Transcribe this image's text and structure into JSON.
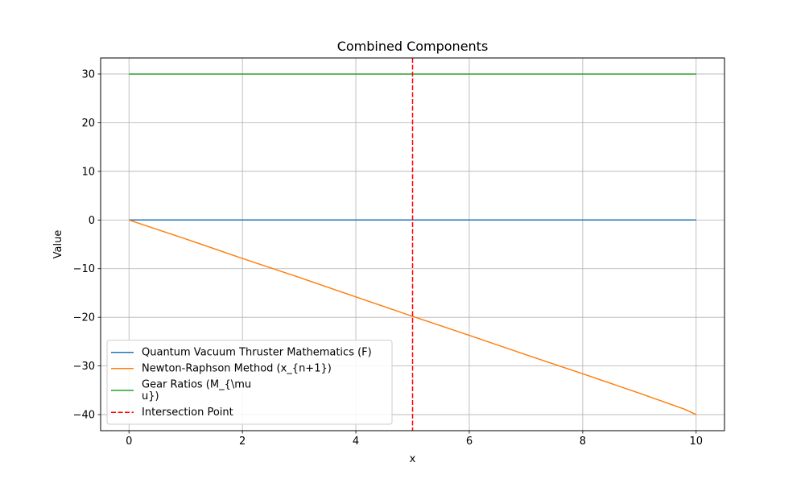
{
  "chart_data": {
    "type": "line",
    "title": "Combined Components",
    "xlabel": "x",
    "ylabel": "Value",
    "xlim": [
      -0.5,
      10.5
    ],
    "ylim": [
      -43.3,
      33.3
    ],
    "xticks": [
      0,
      2,
      4,
      6,
      8,
      10
    ],
    "yticks": [
      -40,
      -30,
      -20,
      -10,
      0,
      10,
      20,
      30
    ],
    "xtick_labels": [
      "0",
      "2",
      "4",
      "6",
      "8",
      "10"
    ],
    "ytick_labels": [
      "−40",
      "−30",
      "−20",
      "−10",
      "0",
      "10",
      "20",
      "30"
    ],
    "grid": true,
    "legend_position": "lower-left",
    "series": [
      {
        "name": "Quantum Vacuum Thruster Mathematics (F)",
        "name_lines": [
          "Quantum Vacuum Thruster Mathematics (F)"
        ],
        "color": "#1f77b4",
        "style": "solid",
        "x": [
          0,
          10
        ],
        "y": [
          0,
          0
        ]
      },
      {
        "name": "Newton-Raphson Method (x_{n+1})",
        "name_lines": [
          "Newton-Raphson Method (x_{n+1})"
        ],
        "color": "#ff7f0e",
        "style": "solid",
        "x": [
          0,
          1,
          2,
          3,
          4,
          5,
          6,
          7,
          8,
          9,
          9.8,
          10
        ],
        "y": [
          0,
          -3.9,
          -7.9,
          -11.8,
          -15.8,
          -19.8,
          -23.7,
          -27.7,
          -31.6,
          -35.6,
          -38.9,
          -40
        ]
      },
      {
        "name": "Gear Ratios (M_{\\mu\nu})",
        "name_lines": [
          "Gear Ratios (M_{\\mu",
          "u})"
        ],
        "color": "#2ca02c",
        "style": "solid",
        "x": [
          0,
          10
        ],
        "y": [
          30,
          30
        ]
      },
      {
        "name": "Intersection Point",
        "name_lines": [
          "Intersection Point"
        ],
        "color": "#ff0000",
        "style": "dashed",
        "vertical_x": 5
      }
    ]
  }
}
